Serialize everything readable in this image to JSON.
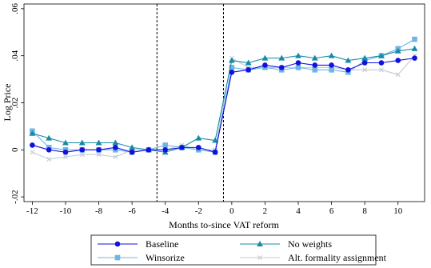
{
  "chart_data": {
    "type": "line",
    "title": "",
    "xlabel": "Months to-since VAT reform",
    "ylabel": "Log Price",
    "xlim": [
      -12.5,
      11.6
    ],
    "ylim": [
      -0.022,
      0.062
    ],
    "x_ticks": [
      {
        "value": -12,
        "label": "-12"
      },
      {
        "value": -10,
        "label": "-10"
      },
      {
        "value": -8,
        "label": "-8"
      },
      {
        "value": -6,
        "label": "-6"
      },
      {
        "value": -4,
        "label": "-4"
      },
      {
        "value": -2,
        "label": "-2"
      },
      {
        "value": 0,
        "label": "0"
      },
      {
        "value": 2,
        "label": "2"
      },
      {
        "value": 4,
        "label": "4"
      },
      {
        "value": 6,
        "label": "6"
      },
      {
        "value": 8,
        "label": "8"
      },
      {
        "value": 10,
        "label": "10"
      }
    ],
    "y_ticks": [
      {
        "value": -0.02,
        "label": "-.02"
      },
      {
        "value": 0,
        "label": "0"
      },
      {
        "value": 0.02,
        "label": ".02"
      },
      {
        "value": 0.04,
        "label": ".04"
      },
      {
        "value": 0.06,
        "label": ".06"
      }
    ],
    "vlines": [
      -4.5,
      -0.5
    ],
    "grid": false,
    "legend_position": "bottom",
    "x": [
      -12,
      -11,
      -10,
      -9,
      -8,
      -7,
      -6,
      -5,
      -4,
      -3,
      -2,
      -1,
      0,
      1,
      2,
      3,
      4,
      5,
      6,
      7,
      8,
      9,
      10,
      11
    ],
    "series": [
      {
        "name": "Baseline",
        "color": "#1010e0",
        "marker": "circle",
        "values": [
          0.002,
          0.0,
          -0.001,
          0.0,
          0.0,
          0.001,
          -0.001,
          0.0,
          0.0,
          0.001,
          0.001,
          -0.001,
          0.033,
          0.034,
          0.036,
          0.035,
          0.037,
          0.036,
          0.036,
          0.034,
          0.037,
          0.037,
          0.038,
          0.039
        ]
      },
      {
        "name": "No weights",
        "color": "#168ba6",
        "marker": "triangle",
        "values": [
          0.007,
          0.005,
          0.003,
          0.003,
          0.003,
          0.003,
          0.001,
          0.0,
          -0.001,
          0.001,
          0.005,
          0.004,
          0.038,
          0.037,
          0.039,
          0.039,
          0.04,
          0.039,
          0.04,
          0.038,
          0.039,
          0.04,
          0.042,
          0.043
        ]
      },
      {
        "name": "Winsorize",
        "color": "#6fb4e6",
        "marker": "square",
        "values": [
          0.008,
          0.001,
          0.0,
          0.0,
          0.0,
          0.0,
          -0.001,
          0.0,
          0.002,
          0.001,
          0.0,
          -0.001,
          0.035,
          0.034,
          0.035,
          0.034,
          0.035,
          0.034,
          0.034,
          0.033,
          0.038,
          0.04,
          0.043,
          0.047
        ]
      },
      {
        "name": "Alt. formality assignment",
        "color": "#c4ccd6",
        "marker": "x",
        "values": [
          -0.001,
          -0.004,
          -0.003,
          -0.002,
          -0.002,
          -0.003,
          0.0,
          0.0,
          0.0,
          0.002,
          0.0,
          0.0,
          0.039,
          0.035,
          0.035,
          0.035,
          0.035,
          0.035,
          0.035,
          0.034,
          0.034,
          0.034,
          0.032,
          0.04
        ]
      }
    ]
  }
}
